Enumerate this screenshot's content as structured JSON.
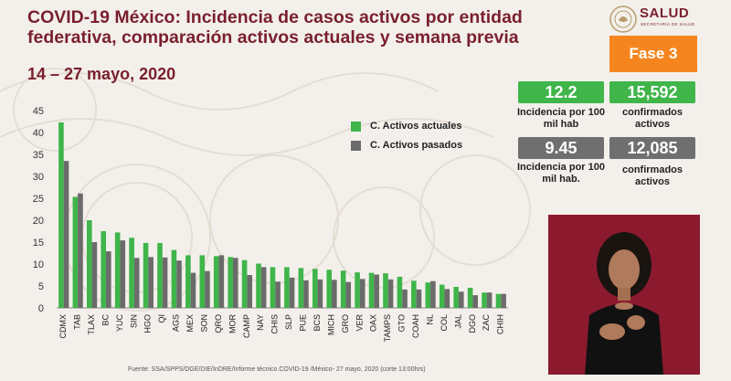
{
  "header": {
    "title_line1": "COVID-19 México: Incidencia de casos activos por entidad",
    "title_line2": "federativa, comparación activos actuales y semana previa",
    "date_range": "14 – 27 mayo, 2020"
  },
  "logo": {
    "text": "SALUD",
    "subtext": "SECRETARÍA DE SALUD"
  },
  "phase": {
    "label": "Fase 3"
  },
  "stats": {
    "current": {
      "incidence": "12.2",
      "incidence_label": "Incidencia por 100 mil hab",
      "confirmed": "15,592",
      "confirmed_label": "confirmados activos"
    },
    "previous": {
      "incidence": "9.45",
      "incidence_label": "Incidencia por 100 mil hab.",
      "confirmed": "12,085",
      "confirmed_label": "confirmados activos"
    }
  },
  "source": "Fuente: SSA/SPPS/DGE/DIE/InDRE/Informe técnico.COVID-19 /México- 27 mayo, 2020 (corte 13:00hrs)",
  "colors": {
    "current": "#3fb54a",
    "previous": "#6b6b6b",
    "brand": "#7a1f2e",
    "phase": "#f5861f"
  },
  "chart_data": {
    "type": "bar",
    "title": "",
    "xlabel": "",
    "ylabel": "",
    "ylim": [
      0,
      45
    ],
    "yticks": [
      0,
      5,
      10,
      15,
      20,
      25,
      30,
      35,
      40,
      45
    ],
    "grid": false,
    "legend_position": "top-right",
    "categories": [
      "CDMX",
      "TAB",
      "TLAX",
      "BC",
      "YUC",
      "SIN",
      "HGO",
      "QI",
      "AGS",
      "MEX",
      "SON",
      "QRO",
      "MOR",
      "CAMP",
      "NAY",
      "CHIS",
      "SLP",
      "PUE",
      "BCS",
      "MICH",
      "GRO",
      "VER",
      "OAX",
      "TAMPS",
      "GTO",
      "COAH",
      "NL",
      "COL",
      "JAL",
      "DGO",
      "ZAC",
      "CHIH"
    ],
    "series": [
      {
        "name": "C. Activos actuales",
        "values": [
          42.3,
          25.3,
          20.0,
          17.5,
          17.2,
          16.0,
          14.8,
          14.8,
          13.2,
          12.0,
          12.0,
          11.8,
          11.6,
          10.9,
          10.1,
          9.3,
          9.3,
          9.1,
          8.9,
          8.7,
          8.5,
          8.1,
          8.0,
          7.9,
          7.1,
          6.2,
          5.8,
          5.3,
          4.8,
          4.6,
          3.5,
          3.2
        ]
      },
      {
        "name": "C. Activos pasados",
        "values": [
          33.5,
          26.1,
          15.0,
          12.9,
          15.4,
          11.4,
          11.6,
          11.5,
          10.8,
          8.0,
          8.4,
          12.0,
          11.4,
          7.5,
          9.3,
          6.0,
          6.9,
          6.3,
          6.5,
          6.4,
          5.9,
          6.6,
          7.6,
          6.5,
          4.2,
          4.2,
          6.1,
          4.3,
          3.7,
          2.9,
          3.5,
          3.2
        ]
      }
    ]
  }
}
